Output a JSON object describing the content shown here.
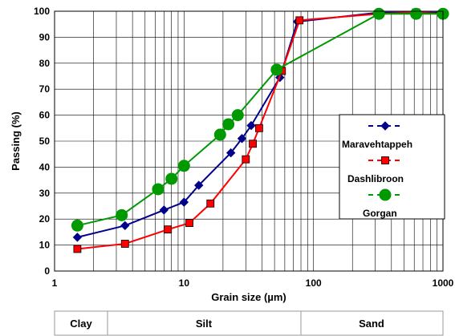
{
  "chart_data": {
    "type": "line",
    "xscale": "log",
    "xlim": [
      1,
      1000
    ],
    "ylim": [
      0,
      100
    ],
    "xlabel": "Grain size (µm)",
    "ylabel": "Passing (%)",
    "x_tick_labels": [
      "1",
      "10",
      "100",
      "1000"
    ],
    "y_tick_labels": [
      "0",
      "10",
      "20",
      "30",
      "40",
      "50",
      "60",
      "70",
      "80",
      "90",
      "100"
    ],
    "grid": "vertical log minor + horizontal major",
    "legend_position": "right-middle",
    "series": [
      {
        "name": "Maravehtappeh",
        "color": "#00008B",
        "marker": "diamond",
        "x": [
          1.5,
          3.5,
          7,
          10,
          13,
          23,
          28,
          33,
          55,
          75,
          320,
          620,
          1000
        ],
        "y": [
          13,
          17.5,
          23.5,
          26.5,
          33,
          45.5,
          51,
          56,
          74.5,
          96,
          99.5,
          99.5,
          99.5
        ]
      },
      {
        "name": "Dashlibroon",
        "color": "#FF0000",
        "marker": "square",
        "x": [
          1.5,
          3.5,
          7.5,
          11,
          16,
          30,
          34,
          38,
          57,
          78,
          320,
          620,
          1000
        ],
        "y": [
          8.5,
          10.5,
          16,
          18.5,
          26,
          43,
          49,
          55,
          77,
          96.5,
          99,
          99.5,
          99
        ]
      },
      {
        "name": "Gorgan",
        "color": "#009900",
        "marker": "circle",
        "x": [
          1.5,
          3.3,
          6.3,
          8,
          10,
          19,
          22,
          26,
          52,
          320,
          620,
          1000
        ],
        "y": [
          17.5,
          21.5,
          31.5,
          35.5,
          40.5,
          52.5,
          56.5,
          60,
          77.5,
          99,
          99,
          99
        ]
      }
    ]
  },
  "size_classes": [
    {
      "label": "Clay"
    },
    {
      "label": "Silt"
    },
    {
      "label": "Sand"
    }
  ]
}
